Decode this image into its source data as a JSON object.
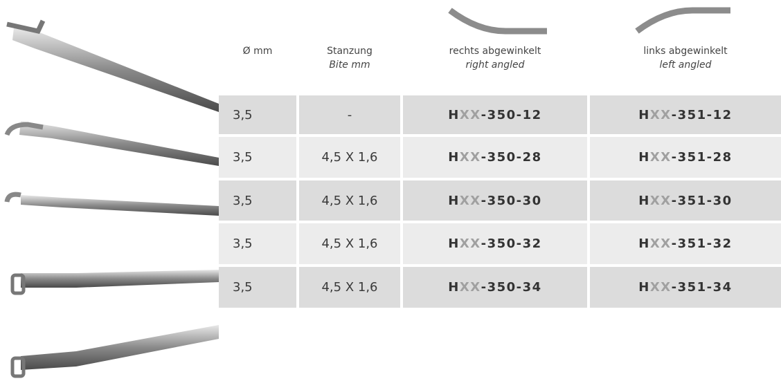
{
  "header": {
    "columns": [
      {
        "title": "Ø mm"
      },
      {
        "title": "Stanzung",
        "subtitle": "Bite mm"
      },
      {
        "title": "rechts abgewinkelt",
        "subtitle": "right angled"
      },
      {
        "title": "links abgewinkelt",
        "subtitle": "left angled"
      }
    ]
  },
  "table": {
    "rows": [
      {
        "diameter": "3,5",
        "bite": "-",
        "right": {
          "prefix": "H",
          "placeholder": "XX",
          "suffix": "-350-12"
        },
        "left": {
          "prefix": "H",
          "placeholder": "XX",
          "suffix": "-351-12"
        }
      },
      {
        "diameter": "3,5",
        "bite": "4,5 X 1,6",
        "right": {
          "prefix": "H",
          "placeholder": "XX",
          "suffix": "-350-28"
        },
        "left": {
          "prefix": "H",
          "placeholder": "XX",
          "suffix": "-351-28"
        }
      },
      {
        "diameter": "3,5",
        "bite": "4,5 X 1,6",
        "right": {
          "prefix": "H",
          "placeholder": "XX",
          "suffix": "-350-30"
        },
        "left": {
          "prefix": "H",
          "placeholder": "XX",
          "suffix": "-351-30"
        }
      },
      {
        "diameter": "3,5",
        "bite": "4,5 X 1,6",
        "right": {
          "prefix": "H",
          "placeholder": "XX",
          "suffix": "-350-32"
        },
        "left": {
          "prefix": "H",
          "placeholder": "XX",
          "suffix": "-351-32"
        }
      },
      {
        "diameter": "3,5",
        "bite": "4,5 X 1,6",
        "right": {
          "prefix": "H",
          "placeholder": "XX",
          "suffix": "-350-34"
        },
        "left": {
          "prefix": "H",
          "placeholder": "XX",
          "suffix": "-351-34"
        }
      }
    ]
  }
}
